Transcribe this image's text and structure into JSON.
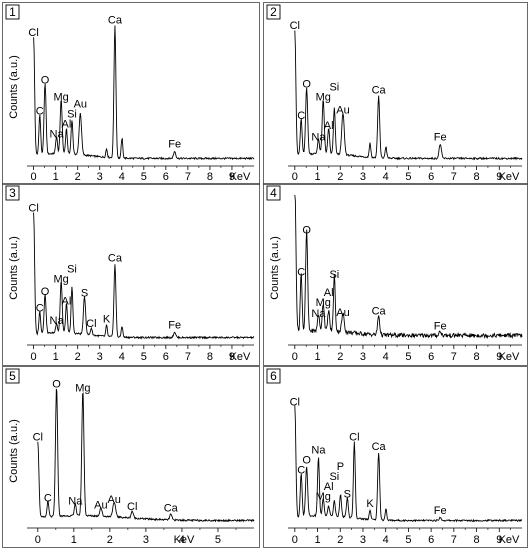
{
  "chart_data": [
    {
      "id": "1",
      "type": "line",
      "xlabel": "KeV",
      "ylabel": "Counts (a.u.)",
      "xlim": [
        -0.3,
        10.0
      ],
      "xticks": [
        0,
        1,
        2,
        3,
        4,
        5,
        6,
        7,
        8,
        9
      ],
      "ylim": [
        0,
        1.05
      ],
      "peaks": [
        {
          "label": "Cl",
          "x": 0.0,
          "y": 0.83,
          "w": 0.09
        },
        {
          "label": "C",
          "x": 0.28,
          "y": 0.28,
          "w": 0.08
        },
        {
          "label": "O",
          "x": 0.52,
          "y": 0.5,
          "w": 0.09
        },
        {
          "label": "Na",
          "x": 1.04,
          "y": 0.12,
          "w": 0.08
        },
        {
          "label": "Mg",
          "x": 1.25,
          "y": 0.38,
          "w": 0.09
        },
        {
          "label": "Al",
          "x": 1.49,
          "y": 0.17,
          "w": 0.08
        },
        {
          "label": "Si",
          "x": 1.74,
          "y": 0.24,
          "w": 0.08
        },
        {
          "label": "Au",
          "x": 2.12,
          "y": 0.29,
          "w": 0.11
        },
        {
          "label": "",
          "x": 3.31,
          "y": 0.06,
          "w": 0.07
        },
        {
          "label": "Ca",
          "x": 3.69,
          "y": 0.92,
          "w": 0.09
        },
        {
          "label": "",
          "x": 4.01,
          "y": 0.14,
          "w": 0.07
        },
        {
          "label": "Fe",
          "x": 6.4,
          "y": 0.05,
          "w": 0.1
        }
      ]
    },
    {
      "id": "2",
      "type": "line",
      "xlabel": "KeV",
      "ylabel": "",
      "xlim": [
        -0.3,
        10.0
      ],
      "xticks": [
        0,
        1,
        2,
        3,
        4,
        5,
        6,
        7,
        8,
        9
      ],
      "ylim": [
        0,
        1.05
      ],
      "peaks": [
        {
          "label": "Cl",
          "x": 0.0,
          "y": 0.88,
          "w": 0.09
        },
        {
          "label": "C",
          "x": 0.28,
          "y": 0.25,
          "w": 0.08
        },
        {
          "label": "O",
          "x": 0.52,
          "y": 0.47,
          "w": 0.09
        },
        {
          "label": "Na",
          "x": 1.04,
          "y": 0.1,
          "w": 0.08
        },
        {
          "label": "Mg",
          "x": 1.25,
          "y": 0.38,
          "w": 0.09
        },
        {
          "label": "Al",
          "x": 1.49,
          "y": 0.18,
          "w": 0.08
        },
        {
          "label": "Si",
          "x": 1.74,
          "y": 0.32,
          "w": 0.08
        },
        {
          "label": "Au",
          "x": 2.12,
          "y": 0.29,
          "w": 0.11
        },
        {
          "label": "",
          "x": 3.31,
          "y": 0.1,
          "w": 0.07
        },
        {
          "label": "Ca",
          "x": 3.69,
          "y": 0.43,
          "w": 0.09
        },
        {
          "label": "",
          "x": 4.01,
          "y": 0.08,
          "w": 0.07
        },
        {
          "label": "Fe",
          "x": 6.4,
          "y": 0.1,
          "w": 0.1
        }
      ]
    },
    {
      "id": "3",
      "type": "line",
      "xlabel": "KeV",
      "ylabel": "Counts (a.u.)",
      "xlim": [
        -0.3,
        10.0
      ],
      "xticks": [
        0,
        1,
        2,
        3,
        4,
        5,
        6,
        7,
        8,
        9
      ],
      "ylim": [
        0,
        1.05
      ],
      "peaks": [
        {
          "label": "Cl",
          "x": 0.0,
          "y": 0.88,
          "w": 0.09
        },
        {
          "label": "C",
          "x": 0.28,
          "y": 0.16,
          "w": 0.08
        },
        {
          "label": "O",
          "x": 0.52,
          "y": 0.28,
          "w": 0.09
        },
        {
          "label": "Na",
          "x": 1.04,
          "y": 0.07,
          "w": 0.08
        },
        {
          "label": "Mg",
          "x": 1.25,
          "y": 0.37,
          "w": 0.09
        },
        {
          "label": "Al",
          "x": 1.49,
          "y": 0.21,
          "w": 0.08
        },
        {
          "label": "Si",
          "x": 1.74,
          "y": 0.33,
          "w": 0.08
        },
        {
          "label": "S",
          "x": 2.31,
          "y": 0.27,
          "w": 0.1
        },
        {
          "label": "Cl",
          "x": 2.62,
          "y": 0.05,
          "w": 0.08
        },
        {
          "label": "K",
          "x": 3.31,
          "y": 0.08,
          "w": 0.07
        },
        {
          "label": "Ca",
          "x": 3.69,
          "y": 0.52,
          "w": 0.09
        },
        {
          "label": "",
          "x": 4.01,
          "y": 0.08,
          "w": 0.07
        },
        {
          "label": "Fe",
          "x": 6.4,
          "y": 0.04,
          "w": 0.1
        }
      ]
    },
    {
      "id": "4",
      "type": "line",
      "xlabel": "KeV",
      "ylabel": "Counts (a.u.)",
      "xlim": [
        -0.3,
        10.0
      ],
      "xticks": [
        0,
        1,
        2,
        3,
        4,
        5,
        6,
        7,
        8,
        9
      ],
      "ylim": [
        0,
        1.05
      ],
      "peaks": [
        {
          "label": "",
          "x": 0.0,
          "y": 1.05,
          "w": 0.1
        },
        {
          "label": "C",
          "x": 0.28,
          "y": 0.42,
          "w": 0.08
        },
        {
          "label": "O",
          "x": 0.52,
          "y": 0.72,
          "w": 0.09
        },
        {
          "label": "Na",
          "x": 1.04,
          "y": 0.12,
          "w": 0.08
        },
        {
          "label": "Mg",
          "x": 1.25,
          "y": 0.2,
          "w": 0.09
        },
        {
          "label": "Al",
          "x": 1.49,
          "y": 0.15,
          "w": 0.08
        },
        {
          "label": "Si",
          "x": 1.74,
          "y": 0.4,
          "w": 0.08
        },
        {
          "label": "Au",
          "x": 2.12,
          "y": 0.13,
          "w": 0.11
        },
        {
          "label": "Ca",
          "x": 3.69,
          "y": 0.14,
          "w": 0.09
        },
        {
          "label": "Fe",
          "x": 6.4,
          "y": 0.03,
          "w": 0.1
        }
      ]
    },
    {
      "id": "5",
      "type": "line",
      "xlabel": "KeV",
      "ylabel": "Counts (a.u.)",
      "xlim": [
        -0.3,
        6.0
      ],
      "xticks": [
        0,
        1,
        2,
        3,
        4,
        5
      ],
      "ylim": [
        0,
        1.05
      ],
      "peaks": [
        {
          "label": "Cl",
          "x": 0.0,
          "y": 0.55,
          "w": 0.06
        },
        {
          "label": "C",
          "x": 0.28,
          "y": 0.11,
          "w": 0.05
        },
        {
          "label": "O",
          "x": 0.52,
          "y": 0.93,
          "w": 0.06
        },
        {
          "label": "Na",
          "x": 1.04,
          "y": 0.09,
          "w": 0.05
        },
        {
          "label": "Mg",
          "x": 1.25,
          "y": 0.9,
          "w": 0.06
        },
        {
          "label": "Au",
          "x": 1.75,
          "y": 0.06,
          "w": 0.06
        },
        {
          "label": "Au",
          "x": 2.12,
          "y": 0.1,
          "w": 0.08
        },
        {
          "label": "Cl",
          "x": 2.62,
          "y": 0.05,
          "w": 0.06
        },
        {
          "label": "Ca",
          "x": 3.69,
          "y": 0.04,
          "w": 0.06
        }
      ]
    },
    {
      "id": "6",
      "type": "line",
      "xlabel": "KeV",
      "ylabel": "",
      "xlim": [
        -0.3,
        10.0
      ],
      "xticks": [
        0,
        1,
        2,
        3,
        4,
        5,
        6,
        7,
        8,
        9
      ],
      "ylim": [
        0,
        1.05
      ],
      "peaks": [
        {
          "label": "Cl",
          "x": 0.0,
          "y": 0.8,
          "w": 0.09
        },
        {
          "label": "C",
          "x": 0.28,
          "y": 0.31,
          "w": 0.08
        },
        {
          "label": "O",
          "x": 0.52,
          "y": 0.36,
          "w": 0.09
        },
        {
          "label": "Na",
          "x": 1.04,
          "y": 0.42,
          "w": 0.08
        },
        {
          "label": "Mg",
          "x": 1.25,
          "y": 0.12,
          "w": 0.08
        },
        {
          "label": "Al",
          "x": 1.49,
          "y": 0.07,
          "w": 0.08
        },
        {
          "label": "Si",
          "x": 1.74,
          "y": 0.11,
          "w": 0.08
        },
        {
          "label": "P",
          "x": 2.01,
          "y": 0.16,
          "w": 0.08
        },
        {
          "label": "S",
          "x": 2.31,
          "y": 0.14,
          "w": 0.08
        },
        {
          "label": "Cl",
          "x": 2.62,
          "y": 0.55,
          "w": 0.08
        },
        {
          "label": "K",
          "x": 3.31,
          "y": 0.07,
          "w": 0.07
        },
        {
          "label": "Ca",
          "x": 3.69,
          "y": 0.48,
          "w": 0.09
        },
        {
          "label": "",
          "x": 4.01,
          "y": 0.08,
          "w": 0.07
        },
        {
          "label": "Fe",
          "x": 6.4,
          "y": 0.02,
          "w": 0.1
        }
      ]
    }
  ]
}
